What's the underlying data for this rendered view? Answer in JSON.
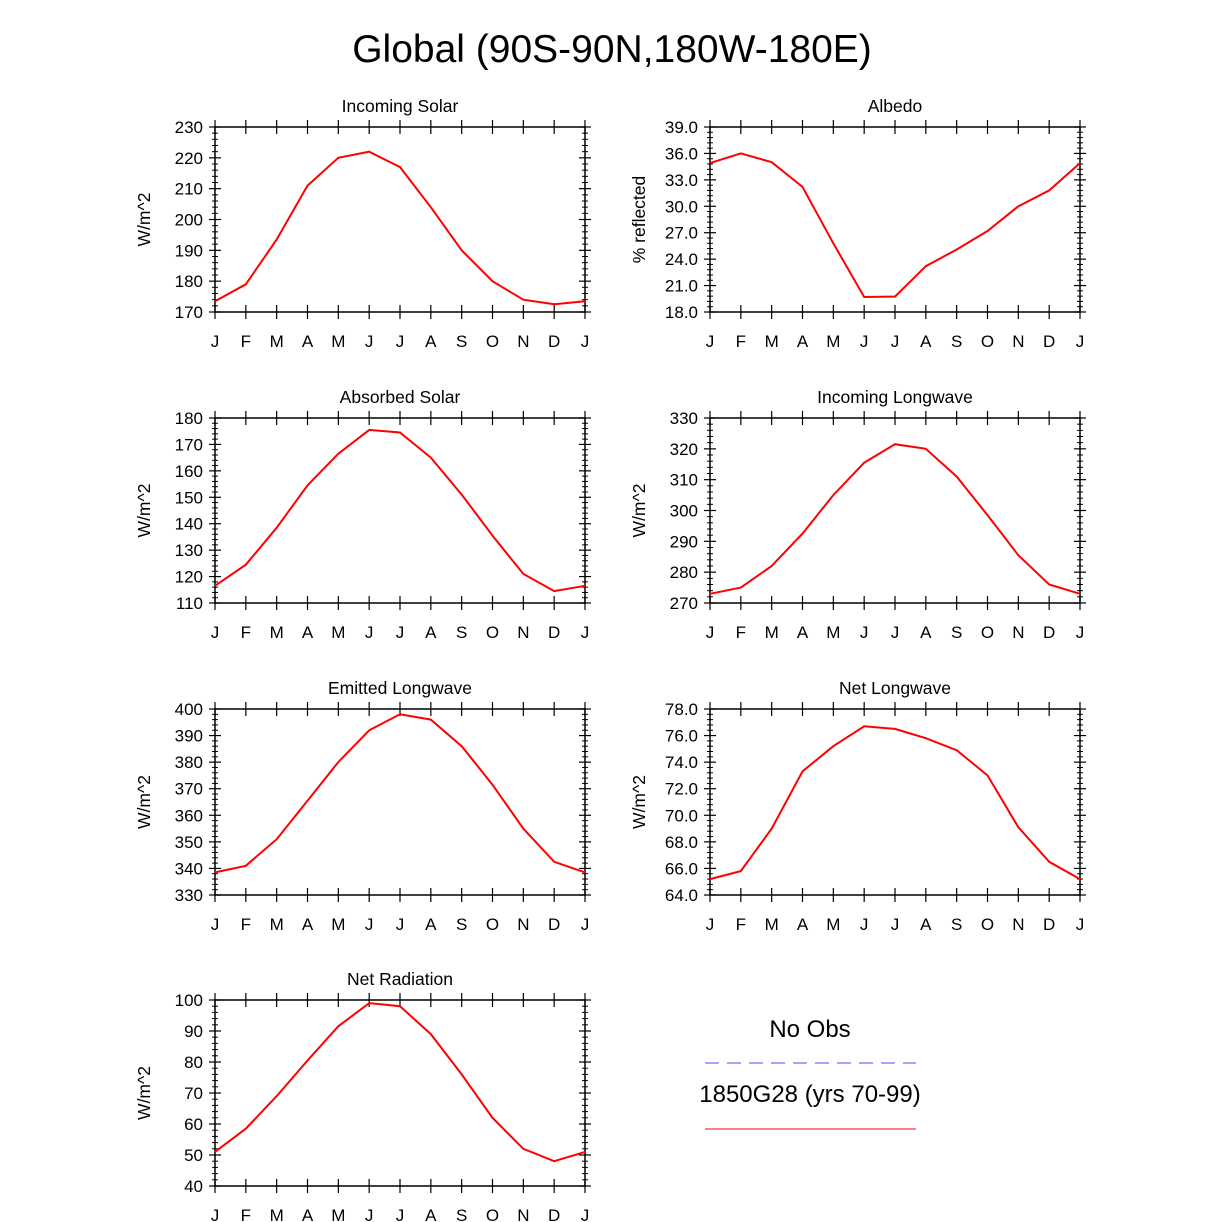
{
  "title": "Global (90S-90N,180W-180E)",
  "legend": {
    "obs_label": "No Obs",
    "obs_color": "#4b4bff",
    "model_label": "1850G28 (yrs 70-99)",
    "model_color": "#ff0000"
  },
  "months": [
    "J",
    "F",
    "M",
    "A",
    "M",
    "J",
    "J",
    "A",
    "S",
    "O",
    "N",
    "D",
    "J"
  ],
  "chart_data": [
    {
      "type": "line",
      "title": "Incoming Solar",
      "ylabel": "W/m^2",
      "ylim": [
        170,
        230
      ],
      "yticks": [
        "170",
        "180",
        "190",
        "200",
        "210",
        "220",
        "230"
      ],
      "values": [
        173.5,
        179.0,
        193.5,
        211.0,
        220.0,
        222.0,
        217.0,
        204.0,
        190.0,
        180.0,
        174.0,
        172.5,
        173.5
      ]
    },
    {
      "type": "line",
      "title": "Albedo",
      "ylabel": "% reflected",
      "ylim": [
        18,
        39
      ],
      "yticks": [
        "18.0",
        "21.0",
        "24.0",
        "27.0",
        "30.0",
        "33.0",
        "36.0",
        "39.0"
      ],
      "values": [
        34.9,
        36.0,
        35.0,
        32.2,
        25.8,
        19.7,
        19.75,
        23.2,
        25.1,
        27.2,
        30.0,
        31.8,
        34.9
      ]
    },
    {
      "type": "line",
      "title": "Absorbed Solar",
      "ylabel": "W/m^2",
      "ylim": [
        110,
        180
      ],
      "yticks": [
        "110",
        "120",
        "130",
        "140",
        "150",
        "160",
        "170",
        "180"
      ],
      "values": [
        116.5,
        124.5,
        138.5,
        154.5,
        166.5,
        175.5,
        174.5,
        165.0,
        151.0,
        135.5,
        121.0,
        114.5,
        116.5
      ]
    },
    {
      "type": "line",
      "title": "Incoming Longwave",
      "ylabel": "W/m^2",
      "ylim": [
        270,
        330
      ],
      "yticks": [
        "270",
        "280",
        "290",
        "300",
        "310",
        "320",
        "330"
      ],
      "values": [
        273.0,
        275.0,
        282.0,
        292.5,
        305.0,
        315.5,
        321.5,
        320.0,
        311.0,
        298.5,
        285.5,
        276.0,
        273.0
      ]
    },
    {
      "type": "line",
      "title": "Emitted Longwave",
      "ylabel": "W/m^2",
      "ylim": [
        330,
        400
      ],
      "yticks": [
        "330",
        "340",
        "350",
        "360",
        "370",
        "380",
        "390",
        "400"
      ],
      "values": [
        338.5,
        341.0,
        351.0,
        365.5,
        380.0,
        392.0,
        398.0,
        396.0,
        386.0,
        371.5,
        355.0,
        342.5,
        338.5
      ]
    },
    {
      "type": "line",
      "title": "Net Longwave",
      "ylabel": "W/m^2",
      "ylim": [
        64,
        78
      ],
      "yticks": [
        "64.0",
        "66.0",
        "68.0",
        "70.0",
        "72.0",
        "74.0",
        "76.0",
        "78.0"
      ],
      "values": [
        65.2,
        65.8,
        69.0,
        73.3,
        75.2,
        76.7,
        76.5,
        75.8,
        74.9,
        73.0,
        69.1,
        66.5,
        65.2
      ]
    },
    {
      "type": "line",
      "title": "Net Radiation",
      "ylabel": "W/m^2",
      "ylim": [
        40,
        100
      ],
      "yticks": [
        "40",
        "50",
        "60",
        "70",
        "80",
        "90",
        "100"
      ],
      "values": [
        51.0,
        58.5,
        69.0,
        80.5,
        91.5,
        99.0,
        98.0,
        89.0,
        76.0,
        62.0,
        52.0,
        48.0,
        51.0
      ]
    }
  ]
}
